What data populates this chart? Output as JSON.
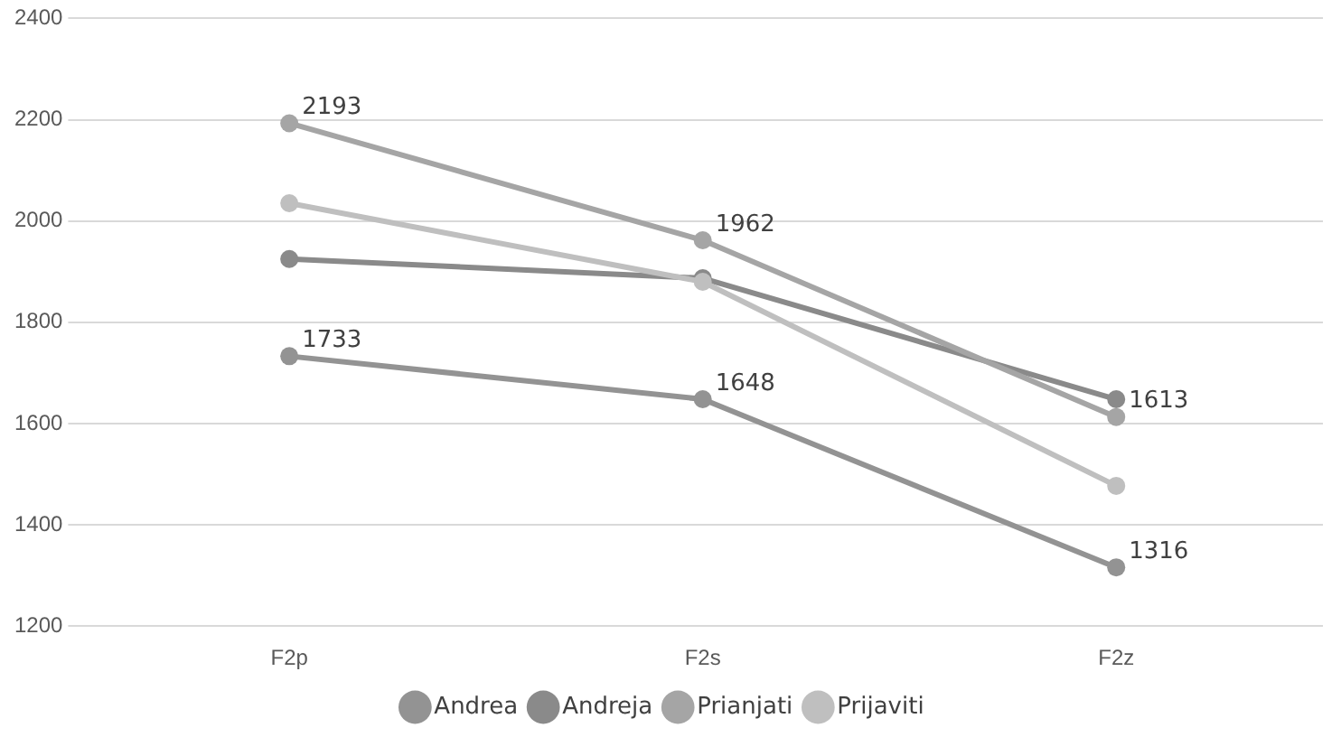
{
  "chart_data": {
    "type": "line",
    "categories": [
      "F2p",
      "F2s",
      "F2z"
    ],
    "series": [
      {
        "name": "Andrea",
        "color": "#939393",
        "values": [
          1733,
          1648,
          1316
        ],
        "value_labels": [
          "1733",
          "1648",
          "1316"
        ]
      },
      {
        "name": "Andreja",
        "color": "#8a8a8a",
        "values": [
          1925,
          1887,
          1648
        ]
      },
      {
        "name": "Prianjati",
        "color": "#a5a5a5",
        "values": [
          2193,
          1962,
          1613
        ],
        "value_labels": [
          "2193",
          "1962",
          "1613"
        ]
      },
      {
        "name": "Prijaviti",
        "color": "#bfbfbf",
        "values": [
          2035,
          1880,
          1477
        ]
      }
    ],
    "ylim": [
      1200,
      2400
    ],
    "yticks": [
      1200,
      1400,
      1600,
      1800,
      2000,
      2200,
      2400
    ],
    "grid": "y",
    "legend": "bottom",
    "marker": "circle",
    "line_style": "solid"
  }
}
